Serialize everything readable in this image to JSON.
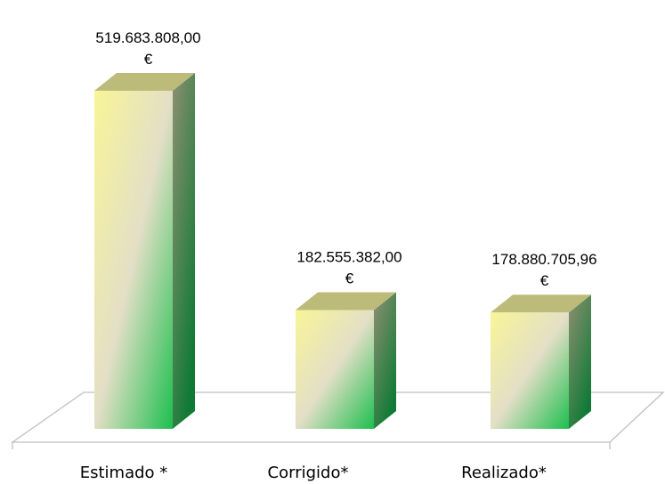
{
  "chart_data": {
    "type": "bar",
    "style": "3d",
    "categories": [
      "Estimado *",
      "Corrigido*",
      "Realizado*"
    ],
    "values": [
      519683808.0,
      182555382.0,
      178880705.96
    ],
    "value_labels": [
      [
        "519.683.808,00",
        "€"
      ],
      [
        "182.555.382,00",
        "€"
      ],
      [
        "178.880.705,96",
        "€"
      ]
    ],
    "ylim": [
      0,
      519683808.0
    ],
    "grid": false,
    "legend": "none",
    "colors": {
      "front_top": "#f8f598",
      "front_mid": "#e3dfc6",
      "front_bottom": "#1dbf4e",
      "side_top": "#8f8f72",
      "side_bottom": "#0f7a35",
      "top_face": "#bcbb7a",
      "floor_line": "#bfbfbf"
    }
  }
}
